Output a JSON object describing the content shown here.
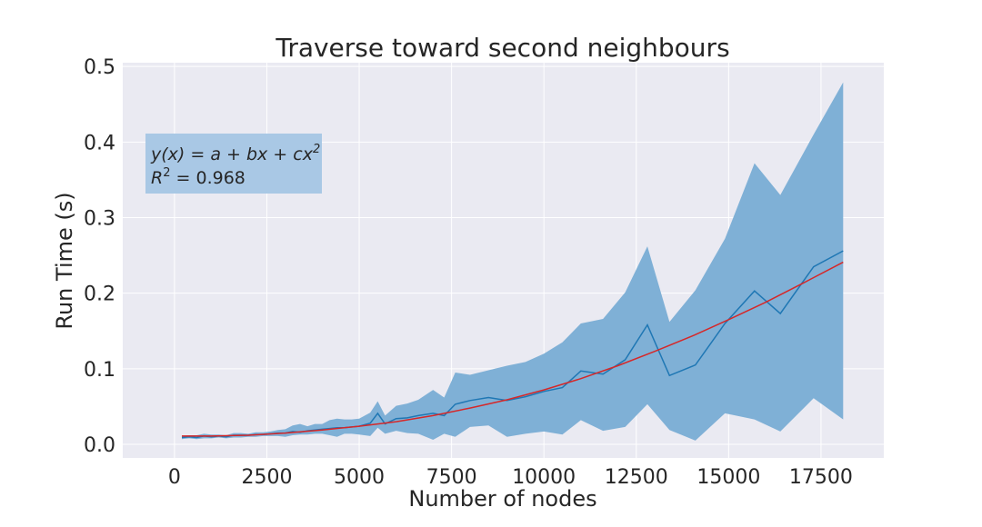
{
  "chart_data": {
    "type": "line",
    "title": "Traverse toward second neighbours",
    "xlabel": "Number of nodes",
    "ylabel": "Run Time (s)",
    "xlim": [
      -1400,
      19200
    ],
    "ylim": [
      -0.018,
      0.505
    ],
    "xticks": [
      0,
      2500,
      5000,
      7500,
      10000,
      12500,
      15000,
      17500
    ],
    "yticks": [
      0.0,
      0.1,
      0.2,
      0.3,
      0.4,
      0.5
    ],
    "xtick_labels": [
      "0",
      "2500",
      "5000",
      "7500",
      "10000",
      "12500",
      "15000",
      "17500"
    ],
    "ytick_labels": [
      "0.0",
      "0.1",
      "0.2",
      "0.3",
      "0.4",
      "0.5"
    ],
    "grid": true,
    "annotation": {
      "formula_prefix": "y(x) = a + bx + cx",
      "formula_exp": "2",
      "r2_prefix": "R",
      "r2_exp": "2",
      "r2_suffix": " = 0.968",
      "placement": "top-left"
    },
    "colors": {
      "background": "#eaeaf2",
      "grid": "#ffffff",
      "line": "#1f77b4",
      "band": "#7fb0d6",
      "fit": "#d62728",
      "annotation_box": "#a9c8e5"
    },
    "series": [
      {
        "kind": "mean",
        "x": [
          200,
          400,
          600,
          800,
          1000,
          1200,
          1400,
          1600,
          1800,
          2000,
          2200,
          2400,
          2600,
          2800,
          3000,
          3200,
          3400,
          3600,
          3800,
          4000,
          4200,
          4400,
          4600,
          4800,
          5000,
          5300,
          5500,
          5700,
          6000,
          6300,
          6600,
          7000,
          7300,
          7600,
          8000,
          8500,
          9000,
          9500,
          10000,
          10500,
          11000,
          11600,
          12200,
          12800,
          13400,
          14100,
          14900,
          15700,
          16400,
          17300,
          18100
        ],
        "y": [
          0.009,
          0.01,
          0.009,
          0.011,
          0.01,
          0.011,
          0.01,
          0.012,
          0.012,
          0.012,
          0.013,
          0.013,
          0.014,
          0.015,
          0.015,
          0.017,
          0.016,
          0.018,
          0.019,
          0.02,
          0.021,
          0.022,
          0.022,
          0.023,
          0.024,
          0.028,
          0.041,
          0.027,
          0.034,
          0.035,
          0.038,
          0.041,
          0.038,
          0.053,
          0.058,
          0.062,
          0.058,
          0.063,
          0.07,
          0.075,
          0.097,
          0.093,
          0.112,
          0.158,
          0.091,
          0.105,
          0.16,
          0.203,
          0.173,
          0.235,
          0.256
        ]
      },
      {
        "kind": "band",
        "x": [
          200,
          400,
          600,
          800,
          1000,
          1200,
          1400,
          1600,
          1800,
          2000,
          2200,
          2400,
          2600,
          2800,
          3000,
          3200,
          3400,
          3600,
          3800,
          4000,
          4200,
          4400,
          4600,
          4800,
          5000,
          5300,
          5500,
          5700,
          6000,
          6300,
          6600,
          7000,
          7300,
          7600,
          8000,
          8500,
          9000,
          9500,
          10000,
          10500,
          11000,
          11600,
          12200,
          12800,
          13400,
          14100,
          14900,
          15700,
          16400,
          17300,
          18100
        ],
        "lower": [
          0.007,
          0.008,
          0.007,
          0.008,
          0.008,
          0.009,
          0.008,
          0.009,
          0.009,
          0.01,
          0.01,
          0.011,
          0.011,
          0.011,
          0.01,
          0.012,
          0.013,
          0.013,
          0.014,
          0.014,
          0.012,
          0.01,
          0.014,
          0.014,
          0.013,
          0.011,
          0.022,
          0.014,
          0.018,
          0.015,
          0.014,
          0.006,
          0.014,
          0.01,
          0.023,
          0.025,
          0.01,
          0.014,
          0.017,
          0.013,
          0.032,
          0.018,
          0.023,
          0.053,
          0.019,
          0.005,
          0.041,
          0.033,
          0.017,
          0.061,
          0.033
        ],
        "upper": [
          0.011,
          0.012,
          0.012,
          0.014,
          0.013,
          0.013,
          0.012,
          0.015,
          0.015,
          0.014,
          0.016,
          0.016,
          0.017,
          0.019,
          0.02,
          0.025,
          0.027,
          0.024,
          0.027,
          0.027,
          0.032,
          0.034,
          0.033,
          0.033,
          0.034,
          0.042,
          0.057,
          0.038,
          0.051,
          0.054,
          0.059,
          0.072,
          0.062,
          0.095,
          0.092,
          0.098,
          0.104,
          0.109,
          0.12,
          0.135,
          0.16,
          0.166,
          0.201,
          0.262,
          0.162,
          0.204,
          0.272,
          0.372,
          0.33,
          0.41,
          0.479
        ]
      },
      {
        "kind": "fit",
        "x": [
          200,
          1000,
          2000,
          3000,
          4000,
          5000,
          6000,
          7000,
          8000,
          9000,
          10000,
          11000,
          12000,
          13000,
          14000,
          15000,
          16000,
          17000,
          18100
        ],
        "y": [
          0.011,
          0.011,
          0.012,
          0.015,
          0.019,
          0.024,
          0.03,
          0.038,
          0.048,
          0.059,
          0.072,
          0.087,
          0.104,
          0.123,
          0.143,
          0.165,
          0.188,
          0.213,
          0.241
        ]
      }
    ]
  }
}
